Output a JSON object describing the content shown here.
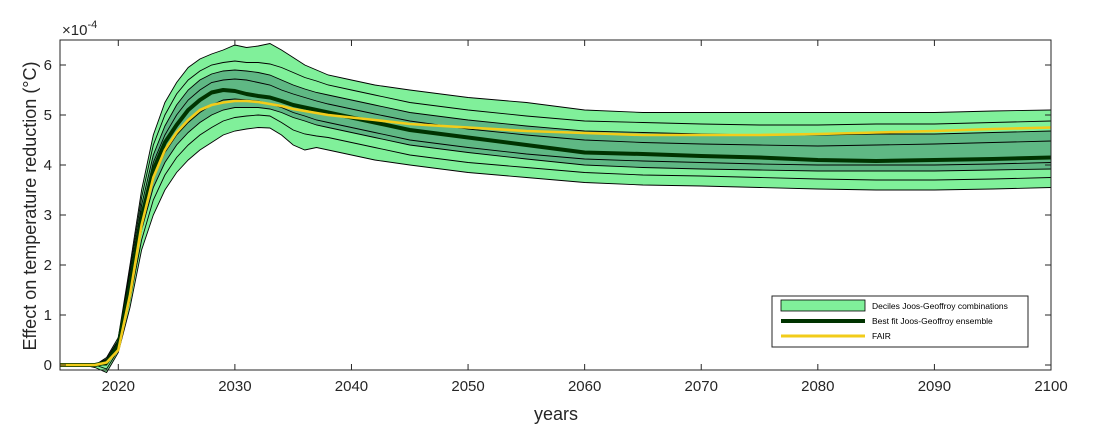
{
  "chart_data": {
    "type": "area",
    "xlabel": "years",
    "ylabel": "Effect on temperature reduction (°C)",
    "exponent_label": "×10",
    "exponent_power": "-4",
    "xlim": [
      2015,
      2100
    ],
    "ylim": [
      -0.1,
      6.5
    ],
    "xticks": [
      2020,
      2030,
      2040,
      2050,
      2060,
      2070,
      2080,
      2090,
      2100
    ],
    "yticks": [
      0,
      1,
      2,
      3,
      4,
      5,
      6
    ],
    "grid": false,
    "legend_position": "bottom-right",
    "colors": {
      "band_outer": "#80f09a",
      "band_inner": "#5fb884",
      "best_fit": "#003300",
      "fair": "#f2cc1a",
      "decile_lines": "#000000"
    },
    "x": [
      2015,
      2017,
      2018,
      2019,
      2020,
      2021,
      2022,
      2023,
      2024,
      2025,
      2026,
      2027,
      2028,
      2029,
      2030,
      2031,
      2032,
      2033,
      2034,
      2035,
      2036,
      2037,
      2038,
      2040,
      2042,
      2045,
      2050,
      2055,
      2060,
      2065,
      2070,
      2075,
      2080,
      2085,
      2090,
      2095,
      2100
    ],
    "series": [
      {
        "name": "Deciles Joos-Geoffroy combinations",
        "role": "decile-10",
        "values": [
          0,
          0,
          -0.05,
          -0.15,
          0.25,
          1.15,
          2.3,
          3.0,
          3.5,
          3.85,
          4.1,
          4.3,
          4.45,
          4.6,
          4.68,
          4.72,
          4.75,
          4.74,
          4.6,
          4.4,
          4.3,
          4.35,
          4.3,
          4.2,
          4.1,
          4.0,
          3.85,
          3.75,
          3.65,
          3.6,
          3.58,
          3.55,
          3.52,
          3.5,
          3.5,
          3.52,
          3.55
        ]
      },
      {
        "name": "Deciles Joos-Geoffroy combinations",
        "role": "decile-20",
        "values": [
          0,
          0,
          0,
          -0.08,
          0.3,
          1.3,
          2.5,
          3.3,
          3.8,
          4.15,
          4.4,
          4.6,
          4.75,
          4.88,
          4.95,
          4.98,
          5.0,
          4.98,
          4.85,
          4.7,
          4.62,
          4.58,
          4.55,
          4.45,
          4.35,
          4.2,
          4.05,
          3.95,
          3.85,
          3.8,
          3.78,
          3.75,
          3.72,
          3.7,
          3.7,
          3.72,
          3.75
        ]
      },
      {
        "name": "Deciles Joos-Geoffroy combinations",
        "role": "decile-30",
        "values": [
          0,
          0,
          0,
          0,
          0.35,
          1.45,
          2.7,
          3.55,
          4.05,
          4.4,
          4.65,
          4.85,
          5.0,
          5.1,
          5.15,
          5.15,
          5.15,
          5.12,
          5.05,
          4.95,
          4.88,
          4.8,
          4.75,
          4.65,
          4.55,
          4.4,
          4.25,
          4.12,
          4.0,
          3.95,
          3.92,
          3.9,
          3.88,
          3.88,
          3.88,
          3.9,
          3.92
        ]
      },
      {
        "name": "Deciles Joos-Geoffroy combinations",
        "role": "decile-40",
        "values": [
          0,
          0,
          0,
          0.02,
          0.38,
          1.55,
          2.85,
          3.75,
          4.25,
          4.6,
          4.85,
          5.05,
          5.2,
          5.3,
          5.32,
          5.3,
          5.28,
          5.22,
          5.15,
          5.05,
          4.98,
          4.9,
          4.85,
          4.75,
          4.65,
          4.5,
          4.35,
          4.22,
          4.12,
          4.08,
          4.05,
          4.02,
          4.0,
          4.0,
          4.0,
          4.02,
          4.05
        ]
      },
      {
        "name": "Best fit Joos-Geoffroy ensemble",
        "role": "best-fit",
        "values": [
          0,
          0,
          0,
          0.05,
          0.4,
          1.6,
          2.95,
          3.9,
          4.45,
          4.8,
          5.1,
          5.3,
          5.45,
          5.5,
          5.48,
          5.42,
          5.38,
          5.35,
          5.28,
          5.2,
          5.15,
          5.1,
          5.05,
          4.95,
          4.85,
          4.7,
          4.55,
          4.4,
          4.25,
          4.22,
          4.18,
          4.15,
          4.1,
          4.08,
          4.1,
          4.12,
          4.15
        ]
      },
      {
        "name": "Deciles Joos-Geoffroy combinations",
        "role": "decile-60",
        "values": [
          0,
          0,
          0,
          0.08,
          0.45,
          1.7,
          3.05,
          4.05,
          4.6,
          5.0,
          5.3,
          5.5,
          5.65,
          5.7,
          5.72,
          5.7,
          5.65,
          5.6,
          5.5,
          5.42,
          5.35,
          5.28,
          5.22,
          5.12,
          5.02,
          4.88,
          4.72,
          4.6,
          4.5,
          4.45,
          4.42,
          4.4,
          4.38,
          4.4,
          4.42,
          4.45,
          4.48
        ]
      },
      {
        "name": "Deciles Joos-Geoffroy combinations",
        "role": "decile-70",
        "values": [
          0,
          0,
          0,
          0.1,
          0.48,
          1.8,
          3.2,
          4.2,
          4.78,
          5.2,
          5.5,
          5.7,
          5.82,
          5.88,
          5.9,
          5.88,
          5.85,
          5.8,
          5.7,
          5.6,
          5.52,
          5.45,
          5.4,
          5.3,
          5.2,
          5.05,
          4.9,
          4.78,
          4.68,
          4.65,
          4.62,
          4.6,
          4.6,
          4.62,
          4.62,
          4.65,
          4.68
        ]
      },
      {
        "name": "Deciles Joos-Geoffroy combinations",
        "role": "decile-80",
        "values": [
          0,
          0,
          0,
          0.12,
          0.5,
          1.9,
          3.35,
          4.4,
          5.0,
          5.42,
          5.7,
          5.88,
          6.0,
          6.05,
          6.08,
          6.05,
          6.05,
          6.02,
          5.95,
          5.85,
          5.75,
          5.68,
          5.6,
          5.5,
          5.4,
          5.25,
          5.1,
          4.98,
          4.88,
          4.85,
          4.82,
          4.8,
          4.8,
          4.82,
          4.82,
          4.85,
          4.88
        ]
      },
      {
        "name": "Deciles Joos-Geoffroy combinations",
        "role": "decile-90",
        "values": [
          0,
          0,
          0,
          0.15,
          0.55,
          2.0,
          3.5,
          4.6,
          5.25,
          5.65,
          5.95,
          6.12,
          6.22,
          6.3,
          6.4,
          6.35,
          6.38,
          6.43,
          6.3,
          6.15,
          6.0,
          5.9,
          5.8,
          5.7,
          5.6,
          5.5,
          5.35,
          5.25,
          5.1,
          5.05,
          5.05,
          5.05,
          5.05,
          5.05,
          5.05,
          5.08,
          5.1
        ]
      },
      {
        "name": "FAIR",
        "role": "fair",
        "values": [
          0,
          0,
          0,
          0.05,
          0.3,
          1.4,
          2.8,
          3.75,
          4.3,
          4.65,
          4.9,
          5.1,
          5.2,
          5.25,
          5.28,
          5.28,
          5.26,
          5.22,
          5.18,
          5.12,
          5.08,
          5.04,
          5.0,
          4.95,
          4.9,
          4.82,
          4.75,
          4.68,
          4.64,
          4.6,
          4.6,
          4.6,
          4.62,
          4.65,
          4.68,
          4.72,
          4.75
        ]
      }
    ],
    "legend": [
      {
        "label": "Deciles Joos-Geoffroy combinations",
        "swatch": "patch"
      },
      {
        "label": "Best fit Joos-Geoffroy ensemble",
        "swatch": "thick-line"
      },
      {
        "label": "FAIR",
        "swatch": "line"
      }
    ]
  }
}
